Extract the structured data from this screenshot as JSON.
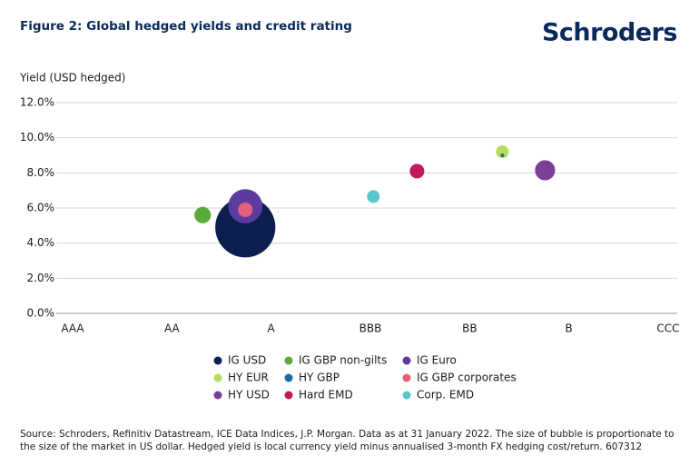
{
  "title": "Figure 2: Global hedged yields and credit rating",
  "logo": "Schroders",
  "chart_data": {
    "type": "bubble",
    "ylabel": "Yield (USD hedged)",
    "xlim": [
      0,
      6
    ],
    "xticks": [
      {
        "value": 0,
        "label": "AAA"
      },
      {
        "value": 1,
        "label": "AA"
      },
      {
        "value": 2,
        "label": "A"
      },
      {
        "value": 3,
        "label": "BBB"
      },
      {
        "value": 4,
        "label": "BB"
      },
      {
        "value": 5,
        "label": "B"
      },
      {
        "value": 6,
        "label": "CCC"
      }
    ],
    "ylim": [
      0,
      12
    ],
    "yticks": [
      {
        "value": 0,
        "label": "0.0%"
      },
      {
        "value": 2,
        "label": "2.0%"
      },
      {
        "value": 4,
        "label": "4.0%"
      },
      {
        "value": 6,
        "label": "6.0%"
      },
      {
        "value": 8,
        "label": "8.0%"
      },
      {
        "value": 10,
        "label": "10.0%"
      },
      {
        "value": 12,
        "label": "12.0%"
      }
    ],
    "grid": true,
    "series": [
      {
        "name": "IG USD",
        "color": "#0b1e4d",
        "x": [
          1.74
        ],
        "values": [
          4.9
        ],
        "sizes": [
          8
        ]
      },
      {
        "name": "IG GBP non-gilts",
        "color": "#5aac3a",
        "x": [
          1.31
        ],
        "values": [
          5.6
        ],
        "sizes": [
          0.6
        ]
      },
      {
        "name": "IG Euro",
        "color": "#5c3b9e",
        "x": [
          1.74
        ],
        "values": [
          6.1
        ],
        "sizes": [
          2.6
        ]
      },
      {
        "name": "HY EUR",
        "color": "#b5dd5a",
        "x": [
          4.33
        ],
        "values": [
          9.2
        ],
        "sizes": [
          0.36
        ]
      },
      {
        "name": "HY GBP",
        "color": "#1a6aa8",
        "x": [
          4.33
        ],
        "values": [
          9.0
        ],
        "sizes": [
          0.03
        ]
      },
      {
        "name": "IG GBP corporates",
        "color": "#e5607a",
        "x": [
          1.74
        ],
        "values": [
          5.9
        ],
        "sizes": [
          0.47
        ]
      },
      {
        "name": "HY USD",
        "color": "#7b3f95",
        "x": [
          4.76
        ],
        "values": [
          8.15
        ],
        "sizes": [
          0.9
        ]
      },
      {
        "name": "Hard EMD",
        "color": "#c0185a",
        "x": [
          3.47
        ],
        "values": [
          8.1
        ],
        "sizes": [
          0.47
        ]
      },
      {
        "name": "Corp. EMD",
        "color": "#5bc5cc",
        "x": [
          3.03
        ],
        "values": [
          6.65
        ],
        "sizes": [
          0.36
        ]
      }
    ]
  },
  "source": "Source: Schroders, Refinitiv Datastream, ICE Data Indices, J.P. Morgan. Data as at 31 January 2022. The size of bubble is proportionate to the size of the market in US dollar. Hedged yield is local currency yield minus annualised 3-month FX hedging cost/return. 607312"
}
